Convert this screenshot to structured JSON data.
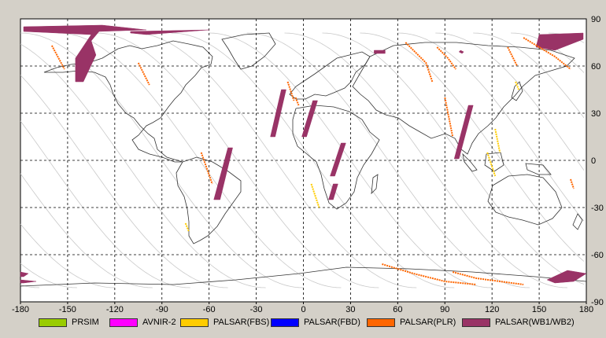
{
  "map": {
    "lon_min": -180,
    "lon_max": 180,
    "lat_min": -90,
    "lat_max": 90,
    "x_ticks": [
      "-180",
      "-150",
      "-120",
      "-90",
      "-60",
      "-30",
      "0",
      "30",
      "60",
      "90",
      "120",
      "150",
      "180"
    ],
    "y_ticks": [
      "90",
      "60",
      "30",
      "0",
      "-30",
      "-60",
      "-90"
    ],
    "grid": "dashed",
    "colors": {
      "background": "#ffffff",
      "coast": "#333333",
      "orbit": "#c8c8c8",
      "grid": "#000000"
    }
  },
  "legend": [
    {
      "label": "PRSIM",
      "color": "#99cc00"
    },
    {
      "label": "AVNIR-2",
      "color": "#ff00ff"
    },
    {
      "label": "PALSAR(FBS)",
      "color": "#ffcc00"
    },
    {
      "label": "PALSAR(FBD)",
      "color": "#0000ff"
    },
    {
      "label": "PALSAR(PLR)",
      "color": "#ff6600"
    },
    {
      "label": "PALSAR(WB1/WB2)",
      "color": "#993366"
    }
  ],
  "swaths": [
    {
      "mode": "PALSAR(WB1/WB2)",
      "points": [
        [
          -178,
          85
        ],
        [
          -128,
          86
        ],
        [
          -100,
          83
        ],
        [
          -130,
          82
        ],
        [
          -135,
          76
        ],
        [
          -132,
          67
        ],
        [
          -140,
          50
        ],
        [
          -145,
          50
        ],
        [
          -145,
          65
        ],
        [
          -135,
          80
        ],
        [
          -178,
          82
        ]
      ]
    },
    {
      "mode": "PALSAR(WB1/WB2)",
      "points": [
        [
          -110,
          82
        ],
        [
          -60,
          83
        ],
        [
          -100,
          80
        ],
        [
          -110,
          81
        ]
      ]
    },
    {
      "mode": "PALSAR(WB1/WB2)",
      "points": [
        [
          -48,
          8
        ],
        [
          -45,
          8
        ],
        [
          -53,
          -25
        ],
        [
          -57,
          -25
        ]
      ]
    },
    {
      "mode": "PALSAR(WB1/WB2)",
      "points": [
        [
          -14,
          45
        ],
        [
          -11,
          45
        ],
        [
          -18,
          15
        ],
        [
          -21,
          15
        ]
      ]
    },
    {
      "mode": "PALSAR(WB1/WB2)",
      "points": [
        [
          6,
          38
        ],
        [
          9,
          38
        ],
        [
          2,
          15
        ],
        [
          -1,
          15
        ]
      ]
    },
    {
      "mode": "PALSAR(WB1/WB2)",
      "points": [
        [
          24,
          11
        ],
        [
          27,
          11
        ],
        [
          20,
          -10
        ],
        [
          17,
          -10
        ]
      ]
    },
    {
      "mode": "PALSAR(WB1/WB2)",
      "points": [
        [
          19,
          -15
        ],
        [
          22,
          -15
        ],
        [
          19,
          -25
        ],
        [
          16,
          -25
        ]
      ]
    },
    {
      "mode": "PALSAR(WB1/WB2)",
      "points": [
        [
          105,
          35
        ],
        [
          108,
          35
        ],
        [
          99,
          1
        ],
        [
          96,
          1
        ]
      ]
    },
    {
      "mode": "PALSAR(WB1/WB2)",
      "points": [
        [
          45,
          70
        ],
        [
          52,
          70
        ],
        [
          52,
          68
        ],
        [
          45,
          68
        ]
      ]
    },
    {
      "mode": "PALSAR(WB1/WB2)",
      "points": [
        [
          150,
          80
        ],
        [
          178,
          81
        ],
        [
          178,
          77
        ],
        [
          160,
          70
        ],
        [
          148,
          72
        ]
      ]
    },
    {
      "mode": "PALSAR(WB1/WB2)",
      "points": [
        [
          -180,
          -71
        ],
        [
          -175,
          -72
        ],
        [
          -178,
          -74
        ],
        [
          -180,
          -74
        ]
      ]
    },
    {
      "mode": "PALSAR(WB1/WB2)",
      "points": [
        [
          -180,
          -76
        ],
        [
          -170,
          -77
        ],
        [
          -178,
          -78
        ],
        [
          -180,
          -78
        ]
      ]
    },
    {
      "mode": "PALSAR(WB1/WB2)",
      "points": [
        [
          155,
          -76
        ],
        [
          168,
          -70
        ],
        [
          180,
          -72
        ],
        [
          172,
          -77
        ],
        [
          160,
          -78
        ]
      ]
    },
    {
      "mode": "PALSAR(WB1/WB2)",
      "points": [
        [
          100,
          70
        ],
        [
          102,
          69
        ],
        [
          101,
          68
        ],
        [
          99,
          69
        ]
      ]
    }
  ],
  "tracks": [
    {
      "mode": "PALSAR(PLR)",
      "points": [
        [
          -160,
          73
        ],
        [
          -152,
          58
        ]
      ]
    },
    {
      "mode": "PALSAR(PLR)",
      "points": [
        [
          -105,
          62
        ],
        [
          -98,
          48
        ]
      ]
    },
    {
      "mode": "PALSAR(PLR)",
      "points": [
        [
          -65,
          5
        ],
        [
          -58,
          -15
        ]
      ]
    },
    {
      "mode": "PALSAR(PLR)",
      "points": [
        [
          -10,
          50
        ],
        [
          -6,
          38
        ]
      ]
    },
    {
      "mode": "PALSAR(PLR)",
      "points": [
        [
          -5,
          40
        ],
        [
          -3,
          35
        ]
      ]
    },
    {
      "mode": "PALSAR(PLR)",
      "points": [
        [
          65,
          75
        ],
        [
          70,
          70
        ],
        [
          78,
          62
        ],
        [
          82,
          50
        ]
      ]
    },
    {
      "mode": "PALSAR(PLR)",
      "points": [
        [
          90,
          40
        ],
        [
          95,
          15
        ]
      ]
    },
    {
      "mode": "PALSAR(PLR)",
      "points": [
        [
          85,
          72
        ],
        [
          92,
          65
        ],
        [
          97,
          58
        ]
      ]
    },
    {
      "mode": "PALSAR(PLR)",
      "points": [
        [
          130,
          72
        ],
        [
          136,
          60
        ]
      ]
    },
    {
      "mode": "PALSAR(PLR)",
      "points": [
        [
          140,
          78
        ],
        [
          160,
          66
        ],
        [
          170,
          58
        ]
      ]
    },
    {
      "mode": "PALSAR(PLR)",
      "points": [
        [
          50,
          -66
        ],
        [
          70,
          -72
        ],
        [
          90,
          -77
        ],
        [
          110,
          -79
        ]
      ]
    },
    {
      "mode": "PALSAR(PLR)",
      "points": [
        [
          95,
          -71
        ],
        [
          110,
          -75
        ],
        [
          125,
          -77
        ],
        [
          140,
          -79
        ]
      ]
    },
    {
      "mode": "PALSAR(PLR)",
      "points": [
        [
          170,
          -12
        ],
        [
          172,
          -18
        ]
      ]
    },
    {
      "mode": "PALSAR(FBS)",
      "points": [
        [
          5,
          -15
        ],
        [
          10,
          -30
        ]
      ]
    },
    {
      "mode": "PALSAR(FBS)",
      "points": [
        [
          117,
          5
        ],
        [
          122,
          -10
        ]
      ]
    },
    {
      "mode": "PALSAR(FBS)",
      "points": [
        [
          -75,
          -40
        ],
        [
          -73,
          -45
        ]
      ]
    },
    {
      "mode": "PALSAR(FBS)",
      "points": [
        [
          135,
          50
        ],
        [
          137,
          45
        ]
      ]
    },
    {
      "mode": "PALSAR(FBS)",
      "points": [
        [
          122,
          20
        ],
        [
          125,
          5
        ]
      ]
    }
  ]
}
